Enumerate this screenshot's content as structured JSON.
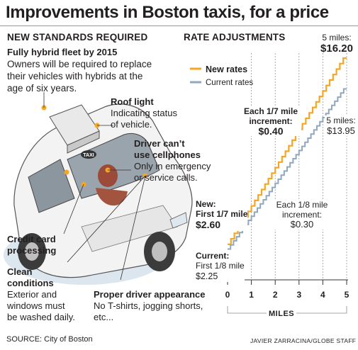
{
  "title": "Improvements in Boston taxis, for a price",
  "left": {
    "section_title": "NEW STANDARDS REQUIRED",
    "hybrid": {
      "heading": "Fully hybrid fleet by 2015",
      "body": [
        "Owners will be required to replace",
        "their vehicles with hybrids at the",
        "age of six years."
      ]
    },
    "roof_light": {
      "heading": "Roof light",
      "body": [
        "Indicating status",
        "of vehicle."
      ]
    },
    "cellphones": {
      "heading": [
        "Driver can’t",
        "use cellphones"
      ],
      "body": [
        "Only in emergency",
        "or service calls."
      ]
    },
    "credit_card": {
      "heading": [
        "Credit card",
        "processing"
      ]
    },
    "clean": {
      "heading": [
        "Clean",
        "conditions"
      ],
      "body": [
        "Exterior and",
        "windows must",
        "be washed daily."
      ]
    },
    "appearance": {
      "heading": "Proper driver appearance",
      "body": [
        "No T-shirts, jogging shorts,",
        "etc..."
      ]
    },
    "taxi_sign": "TAXI"
  },
  "right": {
    "section_title": "RATE ADJUSTMENTS",
    "legend": {
      "new": "New rates",
      "current": "Current rates"
    },
    "new_end": {
      "line1": "5 miles:",
      "line2": "$16.20"
    },
    "current_end": {
      "line1": "5 miles:",
      "line2": "$13.95"
    },
    "new_increment": {
      "line1": "Each 1/7 mile",
      "line2": "increment:",
      "line3": "$0.40"
    },
    "current_increment": {
      "line1": "Each 1/8 mile",
      "line2": "increment:",
      "line3": "$0.30"
    },
    "new_start": {
      "line1": "New:",
      "line2": "First 1/7 mile",
      "line3": "$2.60"
    },
    "current_start": {
      "line1": "Current:",
      "line2": "First 1/8 mile",
      "line3": "$2.25"
    },
    "xlabel": "MILES"
  },
  "source": "SOURCE: City of Boston",
  "credit": "JAVIER ZARRACINA/GLOBE STAFF",
  "colors": {
    "new": "#f5a623",
    "current": "#8fa7bf",
    "text": "#231f20"
  },
  "chart_data": {
    "type": "line",
    "title": "RATE ADJUSTMENTS",
    "xlabel": "MILES",
    "ylabel": "",
    "xlim": [
      0,
      5
    ],
    "xticks": [
      0,
      1,
      2,
      3,
      4,
      5
    ],
    "grid": true,
    "legend_position": "top-left",
    "series": [
      {
        "name": "New rates",
        "step": "stairs",
        "first_distance": 0.142857,
        "first_fare": 2.6,
        "increment_distance": 0.142857,
        "increment_fare": 0.4,
        "end_fare": 16.2
      },
      {
        "name": "Current rates",
        "step": "stairs",
        "first_distance": 0.125,
        "first_fare": 2.25,
        "increment_distance": 0.125,
        "increment_fare": 0.3,
        "end_fare": 13.95
      }
    ]
  }
}
